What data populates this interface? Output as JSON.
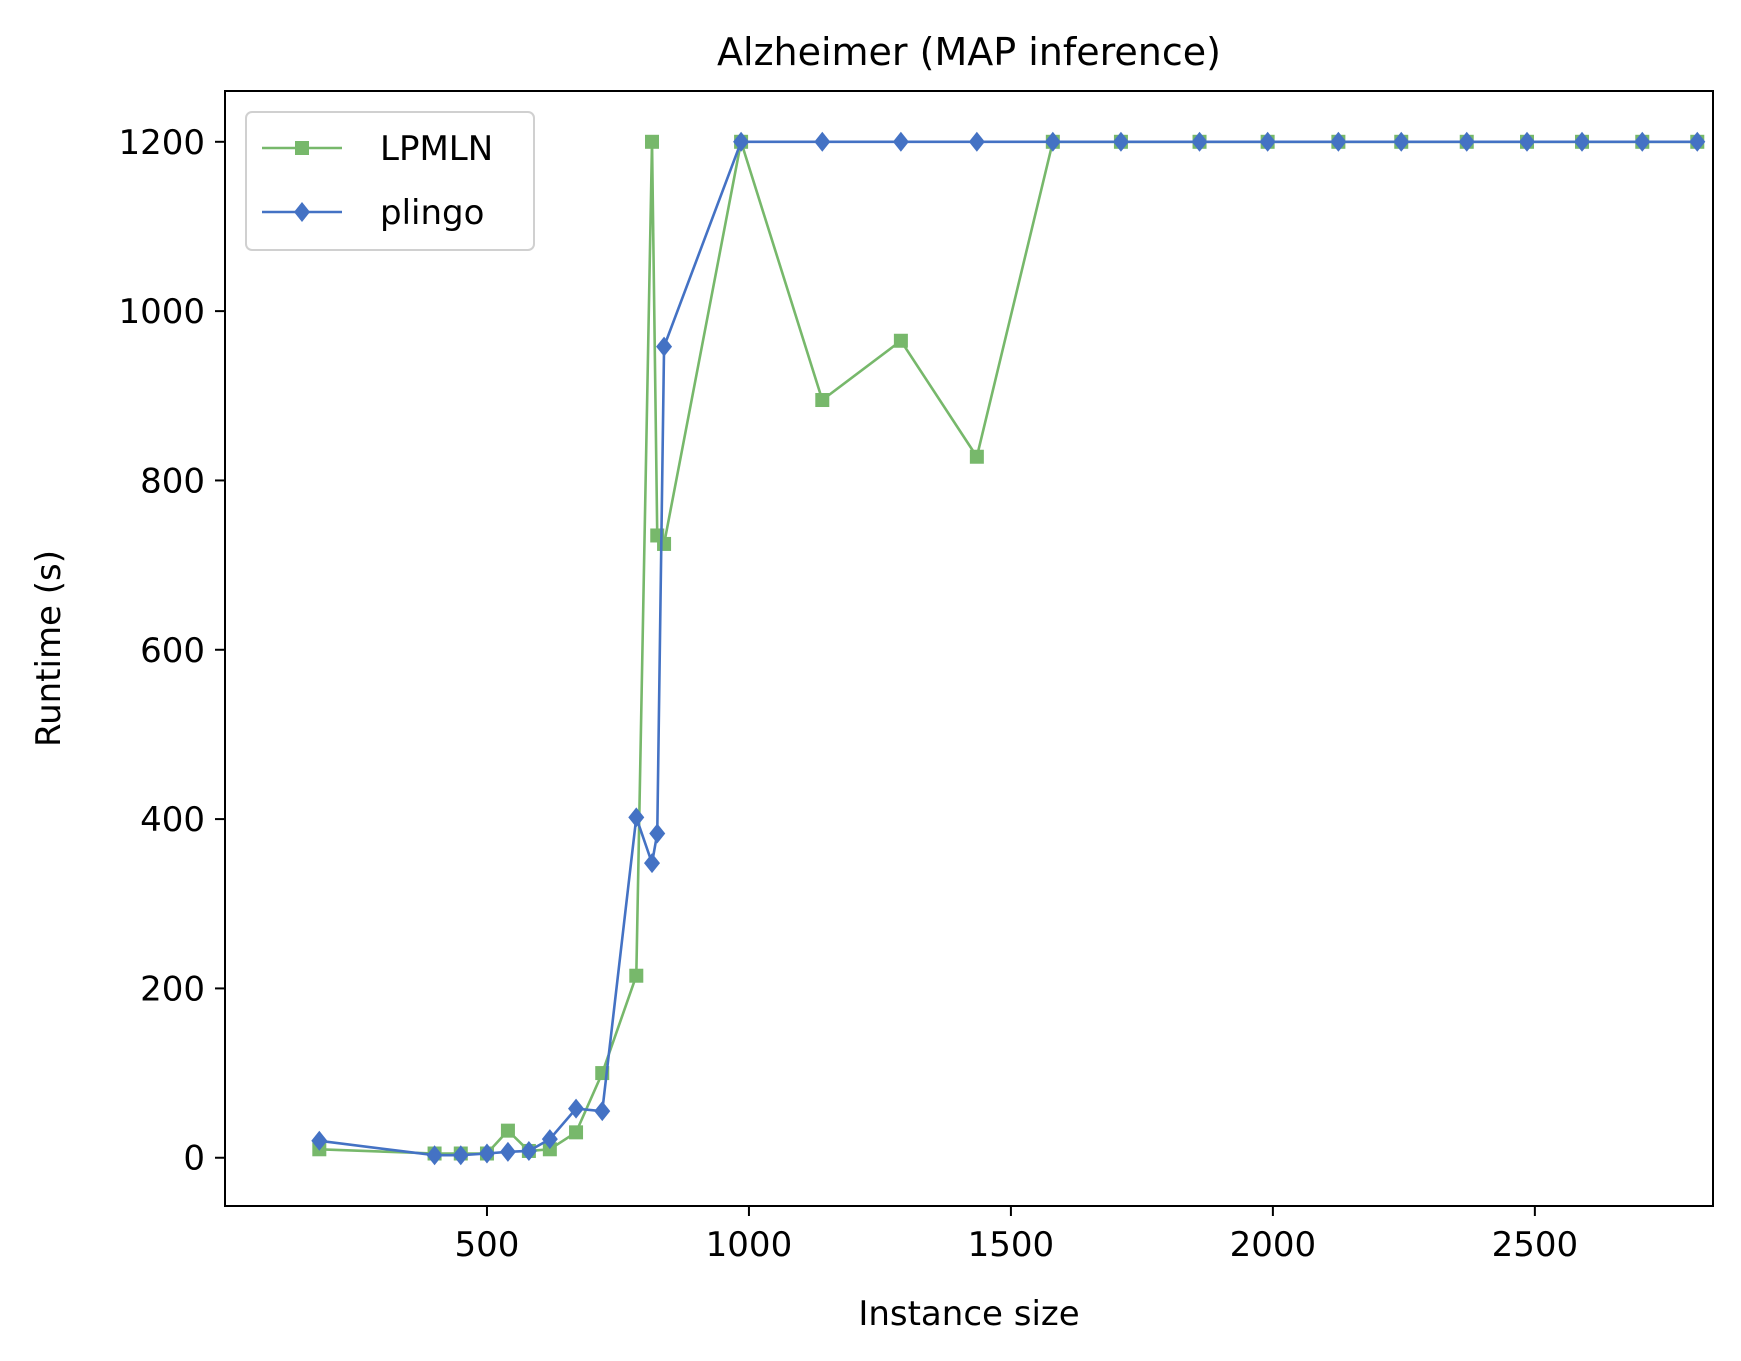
{
  "chart_data": {
    "type": "line",
    "title": "Alzheimer (MAP inference)",
    "xlabel": "Instance size",
    "ylabel": "Runtime (s)",
    "xlim": [
      0,
      2840
    ],
    "ylim": [
      -57,
      1260
    ],
    "xticks": [
      500,
      1000,
      1500,
      2000,
      2500
    ],
    "yticks": [
      0,
      200,
      400,
      600,
      800,
      1000,
      1200
    ],
    "grid": false,
    "legend_position": "top-left",
    "series": [
      {
        "name": "LPMLN",
        "color": "#77b86b",
        "marker": "square",
        "x": [
          180,
          400,
          450,
          500,
          540,
          580,
          620,
          670,
          720,
          785,
          815,
          825,
          838,
          985,
          1140,
          1290,
          1435,
          1580,
          1710,
          1860,
          1990,
          2125,
          2245,
          2370,
          2485,
          2590,
          2705,
          2810
        ],
        "y": [
          10,
          5,
          5,
          5,
          32,
          8,
          10,
          30,
          100,
          215,
          1200,
          735,
          725,
          1200,
          895,
          965,
          828,
          1200,
          1200,
          1200,
          1200,
          1200,
          1200,
          1200,
          1200,
          1200,
          1200,
          1200
        ]
      },
      {
        "name": "plingo",
        "color": "#4472c4",
        "marker": "diamond",
        "x": [
          180,
          400,
          450,
          500,
          540,
          580,
          620,
          670,
          720,
          785,
          815,
          825,
          838,
          985,
          1140,
          1290,
          1435,
          1580,
          1710,
          1860,
          1990,
          2125,
          2245,
          2370,
          2485,
          2590,
          2705,
          2810
        ],
        "y": [
          20,
          3,
          3,
          5,
          7,
          8,
          22,
          58,
          55,
          402,
          348,
          383,
          958,
          1200,
          1200,
          1200,
          1200,
          1200,
          1200,
          1200,
          1200,
          1200,
          1200,
          1200,
          1200,
          1200,
          1200,
          1200
        ]
      }
    ]
  }
}
